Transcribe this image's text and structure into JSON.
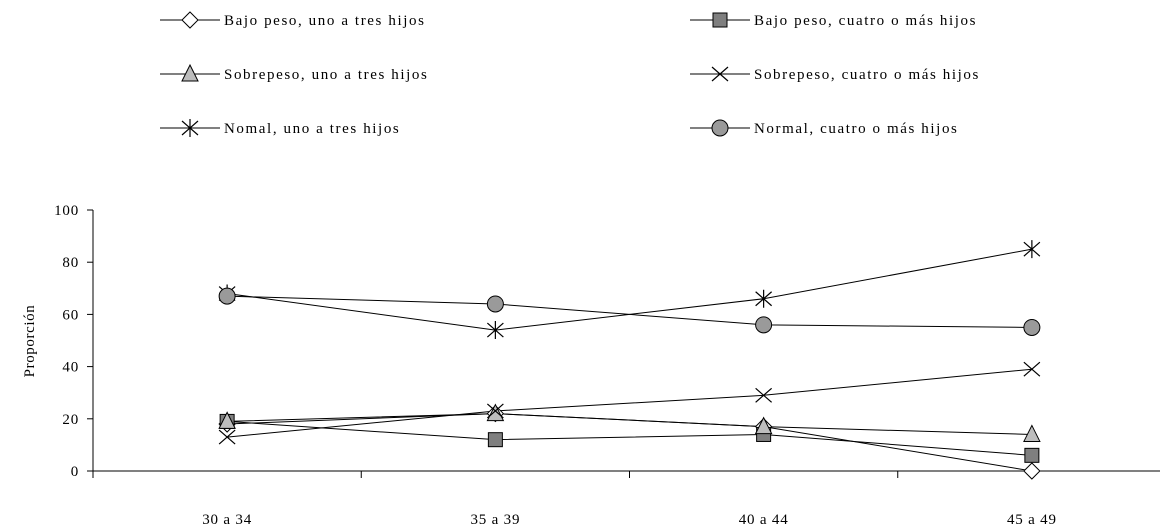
{
  "chart_data": {
    "type": "line",
    "title": "",
    "xlabel": "",
    "ylabel": "Proporción",
    "categories": [
      "30 a 34",
      "35 a 39",
      "40 a 44",
      "45 a 49"
    ],
    "ylim": [
      0,
      100
    ],
    "yticks": [
      "0",
      "20",
      "40",
      "60",
      "80",
      "100"
    ],
    "grid": false,
    "legend_position": "top",
    "series": [
      {
        "name": "Bajo peso, uno a tres hijos",
        "marker": "diamond",
        "values": [
          18,
          22,
          17,
          0
        ]
      },
      {
        "name": "Bajo peso, cuatro o más hijos",
        "marker": "square",
        "values": [
          19,
          12,
          14,
          6
        ]
      },
      {
        "name": "Sobrepeso, uno a tres hijos",
        "marker": "triangle",
        "values": [
          19,
          22,
          17,
          14
        ]
      },
      {
        "name": "Sobrepeso, cuatro o más hijos",
        "marker": "x",
        "values": [
          13,
          23,
          29,
          39
        ]
      },
      {
        "name": "Nomal, uno a tres hijos",
        "marker": "star",
        "values": [
          68,
          54,
          66,
          85
        ]
      },
      {
        "name": "Normal, cuatro o más hijos",
        "marker": "circle",
        "values": [
          67,
          64,
          56,
          55
        ]
      }
    ]
  }
}
